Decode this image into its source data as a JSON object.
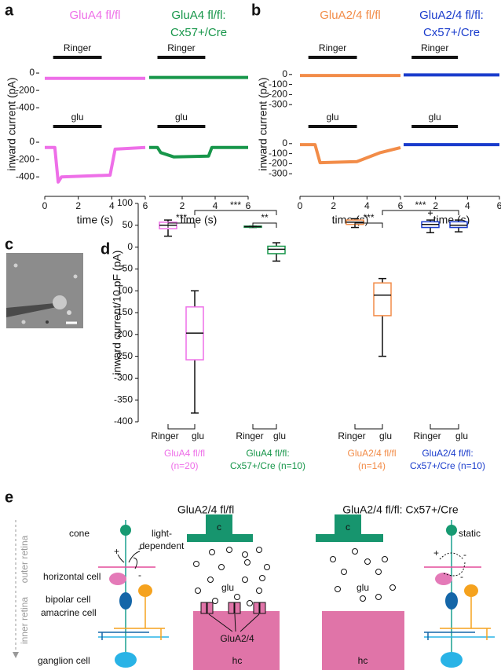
{
  "panel_labels": [
    "a",
    "b",
    "c",
    "d",
    "e"
  ],
  "chart_data": [
    {
      "type": "trace",
      "ylabel": "inward current (pA)",
      "xlabel": "time (s)",
      "xlim": [
        0,
        6
      ],
      "ylim": [
        -480,
        100
      ],
      "yticks": [
        0,
        -200,
        -400
      ],
      "rows": [
        {
          "label": "Ringer",
          "stimulus": [
            0.5,
            3.4
          ]
        },
        {
          "label": "glu",
          "stimulus": [
            0.5,
            3.4
          ]
        }
      ],
      "series": [
        {
          "title_lines": [
            "GluA4 fl/fl"
          ],
          "color": "#ee6fe8",
          "xticks": [
            0,
            2,
            4,
            6
          ],
          "traces": [
            {
              "x": [
                0,
                6
              ],
              "values": [
                -60,
                -60
              ]
            },
            {
              "x": [
                0,
                0.6,
                0.8,
                1.0,
                3.9,
                4.2,
                6
              ],
              "values": [
                -60,
                -60,
                -460,
                -400,
                -380,
                -80,
                -60
              ]
            }
          ]
        },
        {
          "title_lines": [
            "GluA4 fl/fl:",
            "Cx57+/Cre"
          ],
          "color": "#17964a",
          "xticks": [
            2,
            4,
            6
          ],
          "traces": [
            {
              "x": [
                0,
                6
              ],
              "values": [
                -50,
                -50
              ]
            },
            {
              "x": [
                0,
                0.5,
                0.7,
                1.5,
                3.6,
                3.8,
                6
              ],
              "values": [
                -60,
                -60,
                -120,
                -170,
                -160,
                -60,
                -60
              ]
            }
          ]
        }
      ]
    },
    {
      "type": "trace",
      "ylabel": "inward current (pA)",
      "xlabel": "time (s)",
      "xlim": [
        0,
        6
      ],
      "ylim": [
        -400,
        100
      ],
      "yticks": [
        0,
        -100,
        -200,
        -300
      ],
      "rows": [
        {
          "label": "Ringer",
          "stimulus": [
            0.5,
            3.4
          ]
        },
        {
          "label": "glu",
          "stimulus": [
            0.5,
            3.4
          ]
        }
      ],
      "series": [
        {
          "title_lines": [
            "GluA2/4 fl/fl"
          ],
          "color": "#f28c48",
          "xticks": [
            0,
            2,
            4,
            6
          ],
          "traces": [
            {
              "x": [
                0,
                6
              ],
              "values": [
                -10,
                -10
              ]
            },
            {
              "x": [
                0,
                0.9,
                1.2,
                3.4,
                4.8,
                6
              ],
              "values": [
                -10,
                -10,
                -190,
                -180,
                -90,
                -40
              ]
            }
          ]
        },
        {
          "title_lines": [
            "GluA2/4 fl/fl:",
            "Cx57+/Cre"
          ],
          "color": "#1a3ccc",
          "xticks": [
            2,
            4,
            6
          ],
          "traces": [
            {
              "x": [
                0,
                6
              ],
              "values": [
                -5,
                -5
              ]
            },
            {
              "x": [
                0,
                6
              ],
              "values": [
                -10,
                -10
              ]
            }
          ]
        }
      ]
    },
    {
      "type": "box",
      "ylabel": "inward current/10 pF (pA)",
      "ylim": [
        -400,
        100
      ],
      "yticks": [
        100,
        50,
        0,
        -50,
        -100,
        -150,
        -200,
        -250,
        -300,
        -350,
        -400
      ],
      "categories": [
        "Ringer",
        "glu"
      ],
      "series": [
        {
          "label_lines": [
            "GluA4 fl/fl",
            "(n=20)"
          ],
          "color": "#ee6fe8",
          "boxes": [
            [
              25,
              42,
              50,
              57,
              62
            ],
            [
              -380,
              -258,
              -197,
              -137,
              -100
            ]
          ]
        },
        {
          "label_lines": [
            "GluA4 fl/fl:",
            "Cx57+/Cre (n=10)"
          ],
          "color": "#17964a",
          "boxes": [
            [
              45,
              46,
              47,
              48,
              48
            ],
            [
              -32,
              -15,
              -5,
              2,
              10
            ]
          ]
        },
        {
          "label_lines": [
            "GluA2/4 fl/fl",
            "(n=14)"
          ],
          "color": "#f28c48",
          "boxes": [
            [
              45,
              52,
              57,
              62,
              65
            ],
            [
              -250,
              -157,
              -110,
              -82,
              -72
            ]
          ]
        },
        {
          "label_lines": [
            "GluA2/4 fl/fl:",
            "Cx57+/Cre (n=10)"
          ],
          "color": "#1a3ccc",
          "boxes": [
            [
              33,
              45,
              52,
              58,
              62
            ],
            [
              35,
              45,
              50,
              58,
              62
            ]
          ],
          "outliers": [
            [
              78
            ],
            []
          ]
        }
      ],
      "significance": [
        "***",
        "***",
        "**",
        "***",
        "***"
      ]
    }
  ],
  "diagram": {
    "title_left": "GluA2/4 fl/fl",
    "title_right": "GluA2/4 fl/fl: Cx57+/Cre",
    "outer": "outer retina",
    "inner": "inner retina",
    "cone": "cone",
    "horizontal": "horizontal cell",
    "bipolar": "bipolar cell",
    "amacrine": "amacrine cell",
    "ganglion": "ganglion cell",
    "left_mode": [
      "light-",
      "dependent"
    ],
    "right_mode": "static",
    "cone_label": "c",
    "glu": "glu",
    "receptor": "GluA2/4",
    "hc": "hc",
    "plus": "+",
    "minus": "-"
  }
}
